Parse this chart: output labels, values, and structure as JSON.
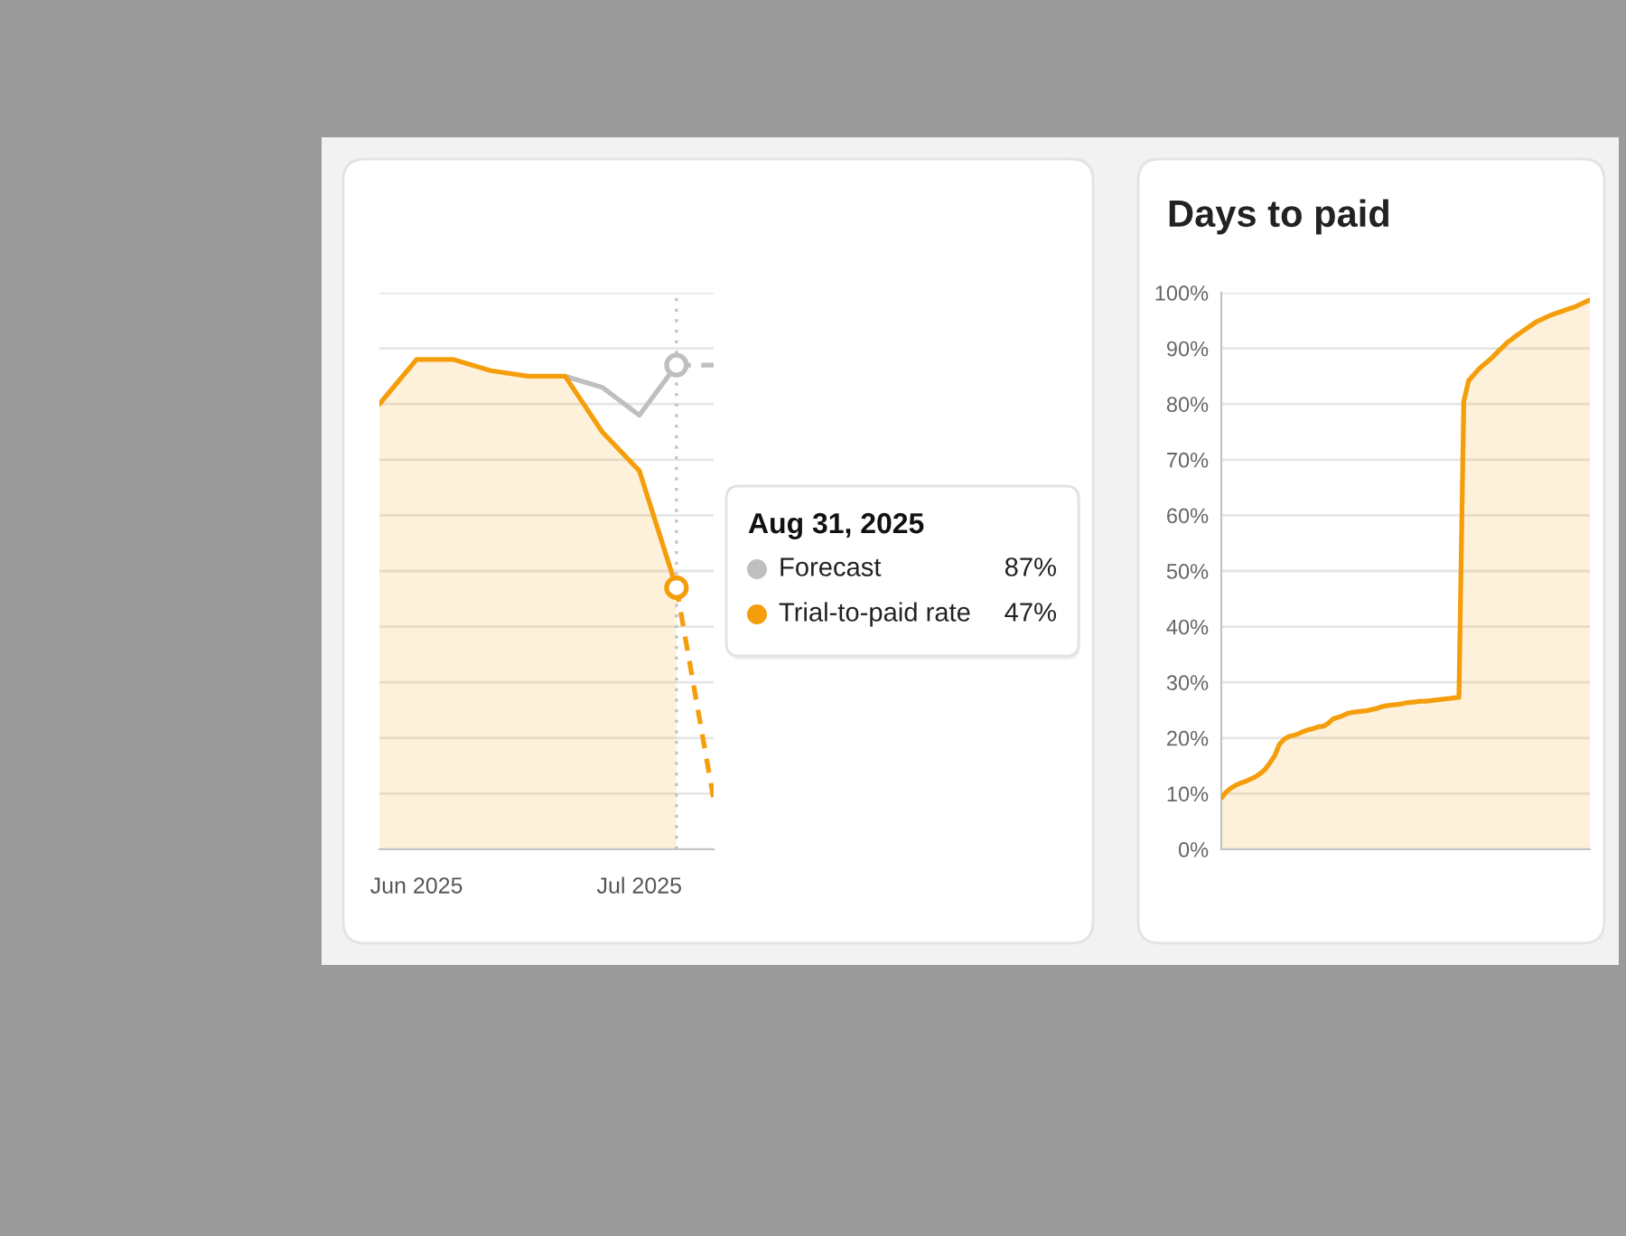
{
  "chart_data": [
    {
      "type": "line",
      "categories": [
        null,
        "Jun 2025",
        null,
        null,
        null,
        null,
        null,
        "Jul 2025",
        null,
        null
      ],
      "series": [
        {
          "name": "Forecast",
          "type": "line",
          "color": "#bfbfbf",
          "values": [
            null,
            null,
            null,
            null,
            null,
            85,
            83,
            78,
            87,
            null
          ]
        },
        {
          "type": "line",
          "color": "#bfbfbf",
          "line_style": "dashed",
          "values": [
            null,
            null,
            null,
            null,
            null,
            null,
            null,
            null,
            87,
            87
          ]
        },
        {
          "name": "Trial-to-paid rate",
          "type": "area",
          "color": "#f59e0b",
          "values": [
            80,
            88,
            88,
            86,
            85,
            85,
            75,
            68,
            47,
            null
          ]
        },
        {
          "type": "line",
          "color": "#f59e0b",
          "line_style": "dashed",
          "values": [
            null,
            null,
            null,
            null,
            null,
            null,
            null,
            null,
            47,
            9
          ]
        },
        {
          "type": "scatter",
          "marker": "circle",
          "color": "#bfbfbf",
          "values": [
            null,
            null,
            null,
            null,
            null,
            null,
            null,
            null,
            87,
            null
          ]
        },
        {
          "type": "scatter",
          "marker": "circle",
          "color": "#f59e0b",
          "values": [
            null,
            null,
            null,
            null,
            null,
            null,
            null,
            null,
            47,
            null
          ]
        }
      ],
      "ylim": [
        0,
        100
      ],
      "yticks": [
        {
          "value": 0,
          "label": null
        },
        {
          "value": 10,
          "label": null
        },
        {
          "value": 20,
          "label": null
        },
        {
          "value": 30,
          "label": null
        },
        {
          "value": 40,
          "label": null
        },
        {
          "value": 50,
          "label": null
        },
        {
          "value": 60,
          "label": null
        },
        {
          "value": 70,
          "label": null
        },
        {
          "value": 80,
          "label": null
        },
        {
          "value": 90,
          "label": null
        },
        {
          "value": 100,
          "label": null
        }
      ],
      "tick_labels": "x",
      "grid": "y",
      "legend": "right",
      "legend_title": "Aug 31, 2025",
      "annotations": [
        "87%",
        "47%"
      ]
    },
    {
      "type": "area",
      "title": "Days to paid",
      "categories": [
        null,
        null,
        null,
        null,
        null,
        null,
        null,
        null,
        null,
        null,
        null,
        null,
        null,
        null,
        null,
        null,
        null,
        null,
        null,
        null,
        null,
        null,
        null,
        null,
        null,
        null,
        null,
        null,
        null,
        null,
        null,
        null,
        null,
        null,
        null,
        null,
        null,
        null,
        null,
        null,
        null,
        null,
        null,
        null,
        null,
        null,
        null,
        null,
        null,
        null,
        null,
        null,
        null,
        null,
        null,
        null,
        null,
        null,
        null,
        null,
        null,
        null,
        null,
        null,
        null,
        null,
        null,
        null,
        null,
        null,
        null,
        null,
        null,
        null,
        null,
        null,
        null
      ],
      "series": [
        {
          "color": "#f59e0b",
          "values": [
            9.2,
            10.3,
            11.0,
            11.5,
            11.9,
            12.2,
            12.6,
            13.0,
            13.6,
            14.3,
            15.5,
            16.8,
            18.9,
            19.8,
            20.3,
            20.5,
            20.8,
            21.2,
            21.5,
            21.7,
            22.0,
            22.1,
            22.6,
            23.4,
            23.7,
            24.0,
            24.4,
            24.6,
            24.7,
            24.8,
            24.9,
            25.1,
            25.3,
            25.6,
            25.8,
            25.9,
            26.0,
            26.1,
            26.3,
            26.4,
            26.5,
            26.6,
            26.6,
            26.7,
            26.8,
            26.9,
            27.0,
            27.1,
            27.2,
            27.3,
            80.5,
            84.2,
            85.2,
            86.2,
            87.0,
            87.7,
            88.5,
            89.4,
            90.2,
            91.1,
            91.7,
            92.4,
            93.0,
            93.6,
            94.2,
            94.8,
            95.2,
            95.6,
            96.0,
            96.3,
            96.6,
            96.9,
            97.2,
            97.5,
            97.9,
            98.3,
            98.7
          ]
        }
      ],
      "ylim": [
        0,
        100
      ],
      "yticks": [
        {
          "value": 0,
          "label": "0%"
        },
        {
          "value": 10,
          "label": "10%"
        },
        {
          "value": 20,
          "label": "20%"
        },
        {
          "value": 30,
          "label": "30%"
        },
        {
          "value": 40,
          "label": "40%"
        },
        {
          "value": 50,
          "label": "50%"
        },
        {
          "value": 60,
          "label": "60%"
        },
        {
          "value": 70,
          "label": "70%"
        },
        {
          "value": 80,
          "label": "80%"
        },
        {
          "value": 90,
          "label": "90%"
        },
        {
          "value": 100,
          "label": "100%"
        }
      ],
      "tick_labels": "y",
      "grid": "y"
    }
  ]
}
